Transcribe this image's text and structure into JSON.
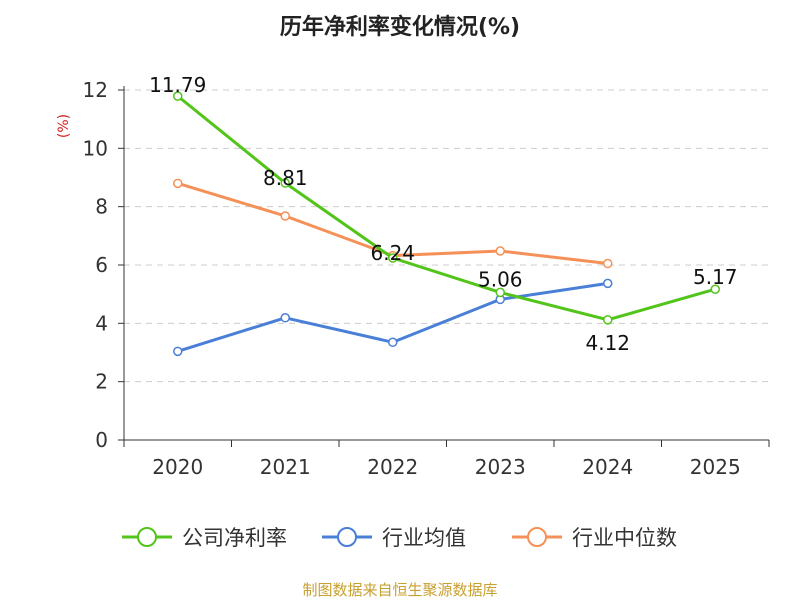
{
  "chart_data": {
    "type": "line",
    "title": "历年净利率变化情况(%)",
    "ylabel": "(%)",
    "categories": [
      "2020",
      "2021",
      "2022",
      "2023",
      "2024",
      "2025"
    ],
    "yticks": [
      "0",
      "2",
      "4",
      "6",
      "8",
      "10",
      "12"
    ],
    "ylim": [
      0,
      12
    ],
    "grid": true,
    "series": [
      {
        "name": "公司净利率",
        "color": "#52c41a",
        "values": [
          11.79,
          8.81,
          6.24,
          5.06,
          4.12,
          5.17
        ],
        "labels": [
          "11.79",
          "8.81",
          "6.24",
          "5.06",
          "4.12",
          "5.17"
        ]
      },
      {
        "name": "行业均值",
        "color": "#4a7fd8",
        "values": [
          3.04,
          4.19,
          3.35,
          4.82,
          5.37,
          null
        ]
      },
      {
        "name": "行业中位数",
        "color": "#f59158",
        "values": [
          8.8,
          7.68,
          6.32,
          6.48,
          6.05,
          null
        ]
      }
    ],
    "legend_position": "bottom"
  },
  "colors": {
    "ylabel": "#d42020",
    "source": "#c8a030",
    "axis": "#333333",
    "grid": "#cccccc"
  },
  "source": "制图数据来自恒生聚源数据库"
}
